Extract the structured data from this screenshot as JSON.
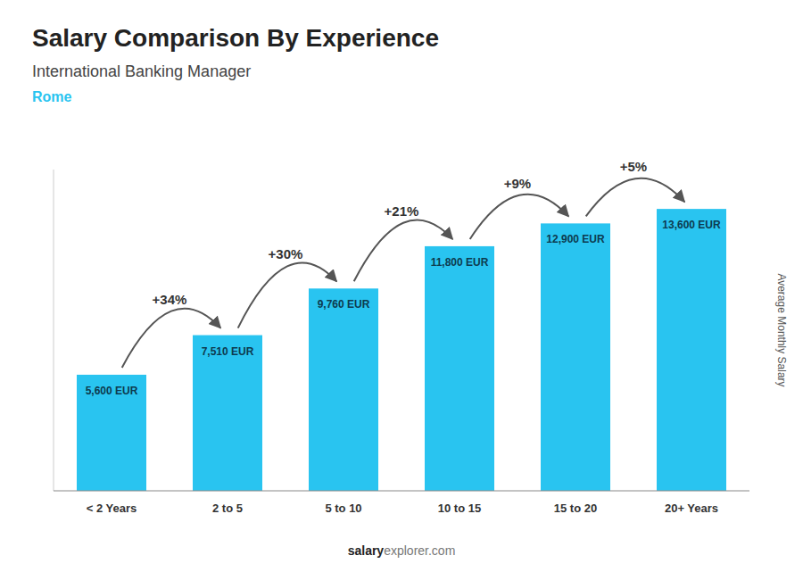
{
  "chart_data": {
    "type": "bar",
    "title": "Salary Comparison By Experience",
    "subtitle": "International Banking Manager",
    "annotations": [
      "Rome",
      "salary",
      "explorer.com"
    ],
    "ylabel": "Average Monthly Salary",
    "categories": [
      "< 2 Years",
      "2 to 5",
      "5 to 10",
      "10 to 15",
      "15 to 20",
      "20+ Years"
    ],
    "values": [
      5600,
      7510,
      9760,
      11800,
      12900,
      13600
    ],
    "value_labels": [
      "5,600 EUR",
      "7,510 EUR",
      "9,760 EUR",
      "11,800 EUR",
      "12,900 EUR",
      "13,600 EUR"
    ],
    "data_labels": true,
    "changes": [
      34,
      30,
      21,
      9,
      5
    ],
    "change_labels": [
      "+34%",
      "+30%",
      "+21%",
      "+9%",
      "+5%"
    ],
    "color": "#29c4f0",
    "ylim": [
      0,
      15500
    ],
    "grid": false,
    "tick_labels": "x"
  }
}
